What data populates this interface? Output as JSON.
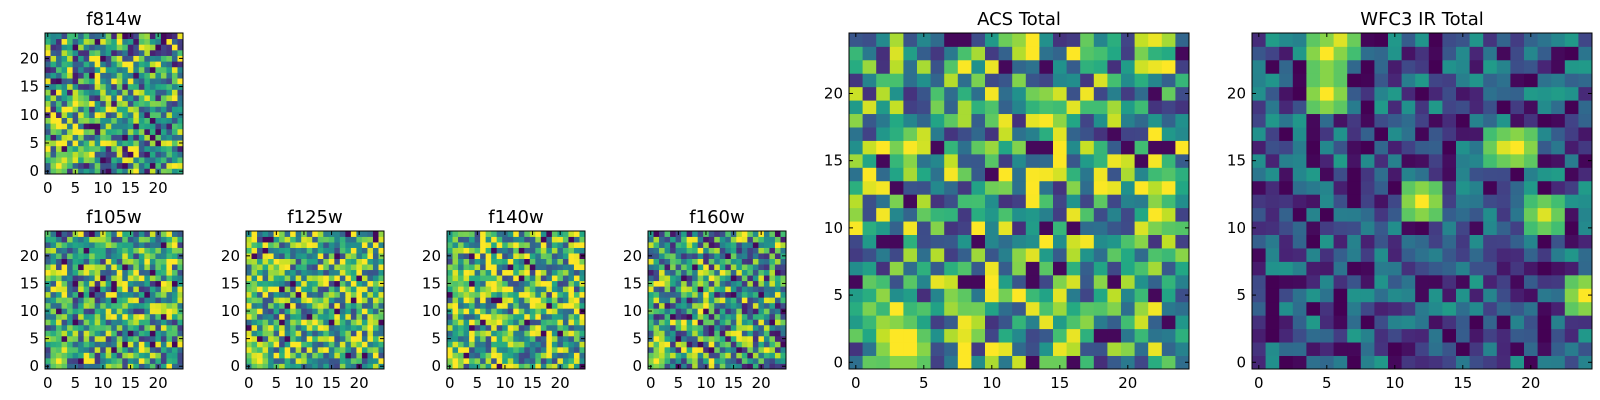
{
  "figure": {
    "colormap": "viridis",
    "background": "#ffffff"
  },
  "chart_data": [
    {
      "type": "heatmap",
      "title": "f814w",
      "grid_size": 25,
      "xlim": [
        -0.5,
        24.5
      ],
      "ylim": [
        -0.5,
        24.5
      ],
      "xticks": [
        0,
        5,
        10,
        15,
        20
      ],
      "yticks": [
        0,
        5,
        10,
        15,
        20
      ],
      "bright_spots": [
        [
          2,
          1,
          1.0
        ],
        [
          3,
          2,
          0.95
        ]
      ],
      "noise_mean": 0.55,
      "noise_spread": 0.5,
      "seed": 11
    },
    {
      "type": "heatmap",
      "title": "f105w",
      "grid_size": 25,
      "xlim": [
        -0.5,
        24.5
      ],
      "ylim": [
        -0.5,
        24.5
      ],
      "xticks": [
        0,
        5,
        10,
        15,
        20
      ],
      "yticks": [
        0,
        5,
        10,
        15,
        20
      ],
      "bright_spots": [
        [
          2,
          1,
          1.0
        ],
        [
          3,
          3,
          0.9
        ],
        [
          1,
          5,
          0.8
        ]
      ],
      "noise_mean": 0.6,
      "noise_spread": 0.45,
      "seed": 23
    },
    {
      "type": "heatmap",
      "title": "f125w",
      "grid_size": 25,
      "xlim": [
        -0.5,
        24.5
      ],
      "ylim": [
        -0.5,
        24.5
      ],
      "xticks": [
        0,
        5,
        10,
        15,
        20
      ],
      "yticks": [
        0,
        5,
        10,
        15,
        20
      ],
      "bright_spots": [
        [
          2,
          1,
          1.0
        ],
        [
          1,
          2,
          0.95
        ]
      ],
      "noise_mean": 0.65,
      "noise_spread": 0.45,
      "seed": 37
    },
    {
      "type": "heatmap",
      "title": "f140w",
      "grid_size": 25,
      "xlim": [
        -0.5,
        24.5
      ],
      "ylim": [
        -0.5,
        24.5
      ],
      "xticks": [
        0,
        5,
        10,
        15,
        20
      ],
      "yticks": [
        0,
        5,
        10,
        15,
        20
      ],
      "bright_spots": [
        [
          1,
          1,
          1.0
        ],
        [
          2,
          14,
          0.95
        ],
        [
          1,
          16,
          0.9
        ]
      ],
      "noise_mean": 0.65,
      "noise_spread": 0.45,
      "seed": 41
    },
    {
      "type": "heatmap",
      "title": "f160w",
      "grid_size": 25,
      "xlim": [
        -0.5,
        24.5
      ],
      "ylim": [
        -0.5,
        24.5
      ],
      "xticks": [
        0,
        5,
        10,
        15,
        20
      ],
      "yticks": [
        0,
        5,
        10,
        15,
        20
      ],
      "bright_spots": [
        [
          1,
          1,
          1.0
        ],
        [
          2,
          2,
          0.9
        ]
      ],
      "noise_mean": 0.55,
      "noise_spread": 0.5,
      "seed": 53
    },
    {
      "type": "heatmap",
      "title": "ACS Total",
      "grid_size": 25,
      "xlim": [
        -0.5,
        24.5
      ],
      "ylim": [
        -0.5,
        24.5
      ],
      "xticks": [
        0,
        5,
        10,
        15,
        20
      ],
      "yticks": [
        0,
        5,
        10,
        15,
        20
      ],
      "bright_spots": [
        [
          3,
          1,
          1.0
        ],
        [
          4,
          1,
          1.0
        ],
        [
          3,
          2,
          1.0
        ],
        [
          2,
          3,
          0.85
        ],
        [
          1,
          4,
          0.8
        ]
      ],
      "noise_mean": 0.58,
      "noise_spread": 0.45,
      "seed": 67
    },
    {
      "type": "heatmap",
      "title": "WFC3 IR Total",
      "grid_size": 25,
      "xlim": [
        -0.5,
        24.5
      ],
      "ylim": [
        -0.5,
        24.5
      ],
      "xticks": [
        0,
        5,
        10,
        15,
        20
      ],
      "yticks": [
        0,
        5,
        10,
        15,
        20
      ],
      "bright_spots": [
        [
          5,
          23,
          1.0
        ],
        [
          5,
          20,
          1.0
        ],
        [
          6,
          24,
          0.95
        ],
        [
          19,
          16,
          1.0
        ],
        [
          18,
          16,
          0.95
        ],
        [
          12,
          12,
          1.0
        ],
        [
          21,
          11,
          0.95
        ],
        [
          24,
          5,
          1.0
        ]
      ],
      "noise_mean": 0.25,
      "noise_spread": 0.3,
      "seed": 79
    }
  ]
}
